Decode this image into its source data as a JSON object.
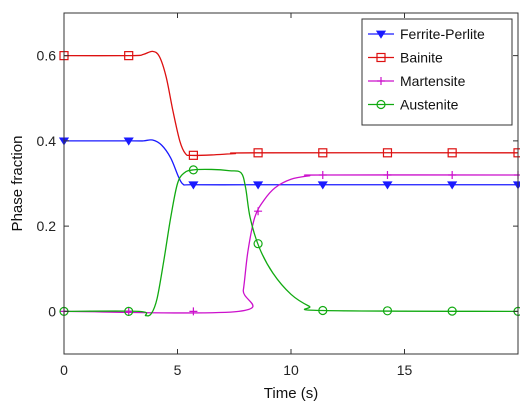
{
  "chart_data": {
    "type": "line",
    "title": "",
    "xlabel": "Time (s)",
    "ylabel": "Phase fraction",
    "xlim": [
      0,
      20
    ],
    "ylim": [
      -0.1,
      0.7
    ],
    "xticks": [
      0,
      5,
      10,
      15
    ],
    "yticks": [
      0,
      0.2,
      0.4,
      0.6
    ],
    "xtick_labels": [
      "0",
      "5",
      "10",
      "15"
    ],
    "ytick_labels": [
      "0",
      "0.2",
      "0.4",
      "0.6"
    ],
    "grid": false,
    "legend_position": "top-right",
    "series": [
      {
        "name": "Ferrite-Perlite",
        "color": "#1a1aff",
        "marker": "triangle-down",
        "points": [
          [
            0,
            0.4
          ],
          [
            3.0,
            0.4
          ],
          [
            3.5,
            0.4
          ],
          [
            3.9,
            0.402
          ],
          [
            4.3,
            0.39
          ],
          [
            4.7,
            0.36
          ],
          [
            5.05,
            0.315
          ],
          [
            5.25,
            0.298
          ],
          [
            5.6,
            0.297
          ],
          [
            8,
            0.297
          ],
          [
            10,
            0.297
          ],
          [
            20,
            0.297
          ]
        ],
        "marker_x": [
          0,
          2.85,
          5.7,
          8.55,
          11.4,
          14.25,
          17.1,
          20
        ]
      },
      {
        "name": "Bainite",
        "color": "#dd1111",
        "marker": "square",
        "points": [
          [
            0,
            0.6
          ],
          [
            3.0,
            0.6
          ],
          [
            3.5,
            0.603
          ],
          [
            3.9,
            0.61
          ],
          [
            4.2,
            0.598
          ],
          [
            4.5,
            0.55
          ],
          [
            4.8,
            0.47
          ],
          [
            5.1,
            0.4
          ],
          [
            5.35,
            0.37
          ],
          [
            5.6,
            0.366
          ],
          [
            6.5,
            0.367
          ],
          [
            7.5,
            0.37
          ],
          [
            8.5,
            0.372
          ],
          [
            20,
            0.372
          ]
        ],
        "marker_x": [
          0,
          2.85,
          5.7,
          8.55,
          11.4,
          14.25,
          17.1,
          20
        ]
      },
      {
        "name": "Martensite",
        "color": "#cc11cc",
        "marker": "plus",
        "points": [
          [
            0,
            0
          ],
          [
            7.7,
            0
          ],
          [
            7.9,
            0.05
          ],
          [
            8.1,
            0.14
          ],
          [
            8.4,
            0.22
          ],
          [
            8.8,
            0.26
          ],
          [
            9.3,
            0.29
          ],
          [
            10,
            0.31
          ],
          [
            10.8,
            0.318
          ],
          [
            11.4,
            0.32
          ],
          [
            20,
            0.32
          ]
        ],
        "marker_x": [
          0,
          2.85,
          5.7,
          8.55,
          11.4,
          14.25,
          17.1,
          20
        ]
      },
      {
        "name": "Austenite",
        "color": "#11aa11",
        "marker": "circle",
        "points": [
          [
            0,
            0
          ],
          [
            3.3,
            0
          ],
          [
            3.6,
            -0.01
          ],
          [
            3.85,
            -0.005
          ],
          [
            4.1,
            0.03
          ],
          [
            4.4,
            0.12
          ],
          [
            4.7,
            0.22
          ],
          [
            5.0,
            0.3
          ],
          [
            5.3,
            0.325
          ],
          [
            5.7,
            0.332
          ],
          [
            6.5,
            0.333
          ],
          [
            7.3,
            0.33
          ],
          [
            7.8,
            0.325
          ],
          [
            8.0,
            0.29
          ],
          [
            8.2,
            0.22
          ],
          [
            8.6,
            0.15
          ],
          [
            9.2,
            0.09
          ],
          [
            10,
            0.04
          ],
          [
            10.8,
            0.012
          ],
          [
            11.4,
            0.002
          ],
          [
            20,
            0
          ]
        ],
        "marker_x": [
          0,
          2.85,
          5.7,
          8.55,
          11.4,
          14.25,
          17.1,
          20
        ]
      }
    ]
  }
}
